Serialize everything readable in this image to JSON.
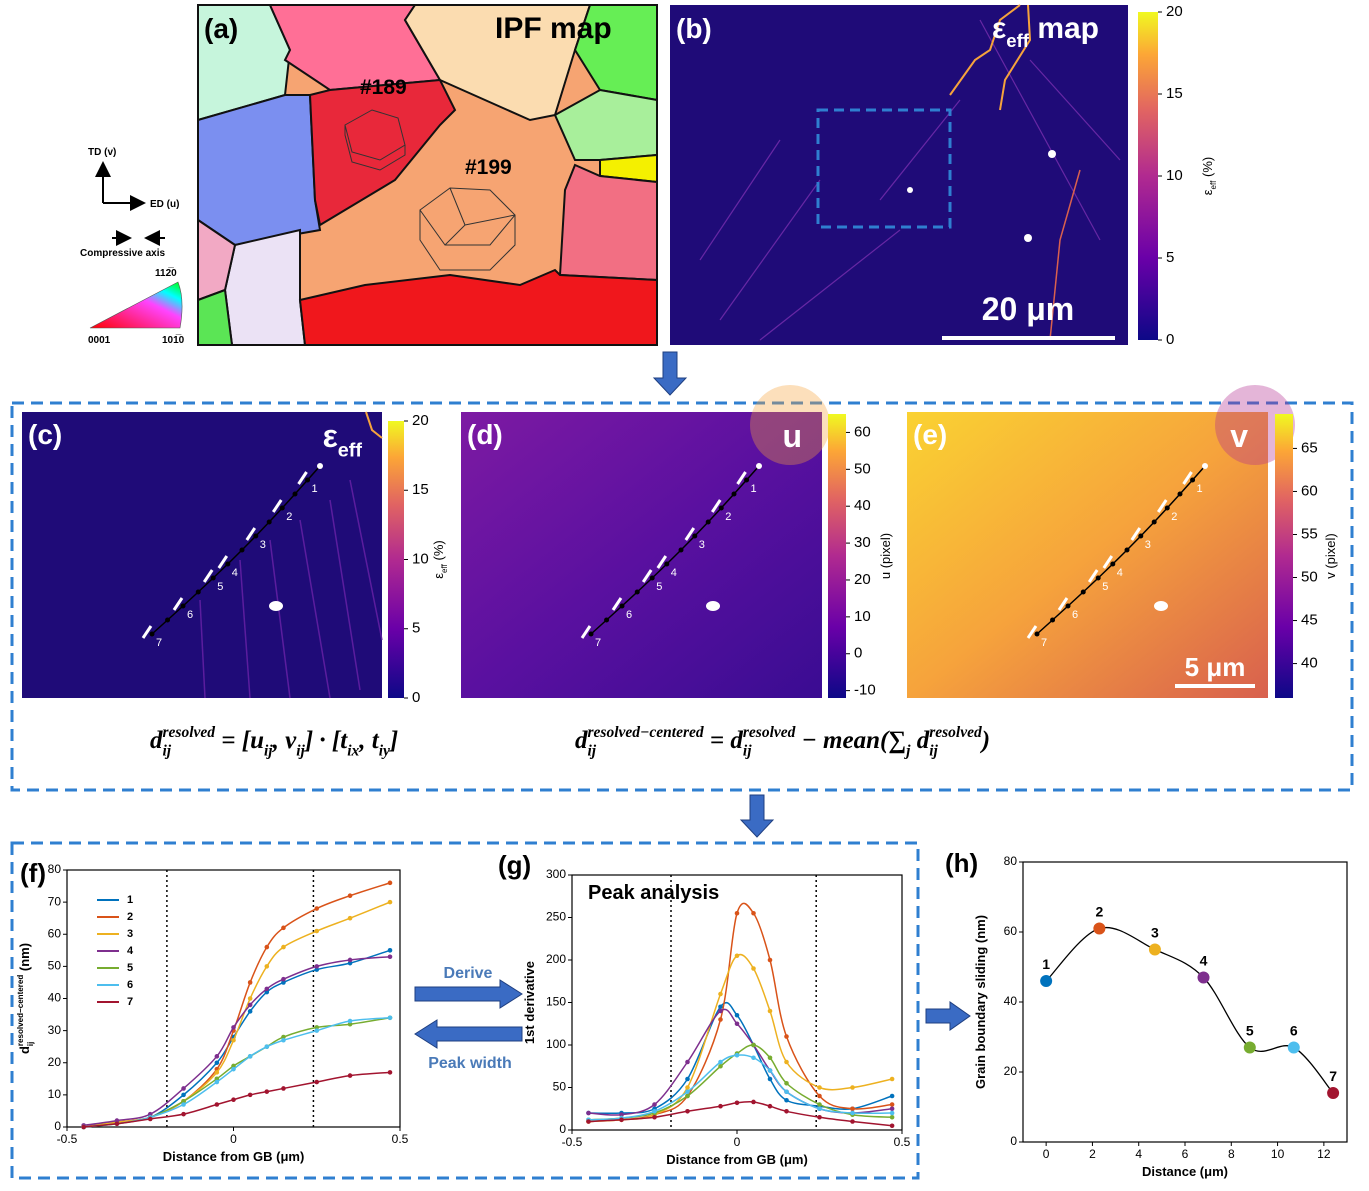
{
  "figure": {
    "panel_a": {
      "label": "(a)",
      "title": "IPF map",
      "grain_labels": [
        "#189",
        "#199"
      ],
      "td_axis": "TD (v)",
      "ed_axis": "ED (u)",
      "compressive_axis": "Compressive axis",
      "ipf_corners": [
        "0001",
        "101̅0",
        "112̅0"
      ]
    },
    "panel_b": {
      "label": "(b)",
      "title": [
        [
          "ε",
          ""
        ],
        [
          "eff",
          "sub"
        ],
        [
          " map",
          ""
        ]
      ],
      "scale_bar": "20 μm",
      "colorbar": {
        "label": [
          [
            "ε",
            ""
          ],
          [
            "eff",
            "sub"
          ],
          [
            " (%)",
            ""
          ]
        ],
        "lim": [
          0,
          20
        ],
        "ticks": [
          0,
          5,
          10,
          15,
          20
        ]
      }
    },
    "panel_c": {
      "label": "(c)",
      "title": [
        [
          "ε",
          ""
        ],
        [
          "eff",
          "sub"
        ]
      ],
      "colorbar": {
        "label": [
          [
            "ε",
            ""
          ],
          [
            "eff",
            "sub"
          ],
          [
            " (%)",
            ""
          ]
        ],
        "lim": [
          0,
          20
        ],
        "ticks": [
          0,
          5,
          10,
          15,
          20
        ]
      }
    },
    "panel_d": {
      "label": "(d)",
      "title": [
        [
          "u",
          ""
        ]
      ],
      "colorbar": {
        "label": [
          [
            "u (pixel)",
            ""
          ]
        ],
        "lim": [
          -12,
          65
        ],
        "ticks": [
          -10,
          0,
          10,
          20,
          30,
          40,
          50,
          60
        ]
      }
    },
    "panel_e": {
      "label": "(e)",
      "title": [
        [
          "v",
          ""
        ]
      ],
      "scale_bar": "5 μm",
      "colorbar": {
        "label": [
          [
            "v (pixel)",
            ""
          ]
        ],
        "lim": [
          36,
          69
        ],
        "ticks": [
          40,
          45,
          50,
          55,
          60,
          65
        ]
      }
    },
    "profile_labels": [
      "1",
      "2",
      "3",
      "4",
      "5",
      "6",
      "7"
    ],
    "equations": [
      [
        [
          "d",
          ""
        ],
        [
          "resolved",
          "sup"
        ],
        [
          "ij",
          "sub"
        ],
        [
          " = [u",
          ""
        ],
        [
          "ij",
          "sub"
        ],
        [
          ", v",
          ""
        ],
        [
          "ij",
          "sub"
        ],
        [
          "] · [t",
          ""
        ],
        [
          "ix",
          "sub"
        ],
        [
          ", t",
          ""
        ],
        [
          "iy",
          "sub"
        ],
        [
          "]",
          ""
        ]
      ],
      [
        [
          "d",
          ""
        ],
        [
          "resolved−centered",
          "sup"
        ],
        [
          "ij",
          "sub"
        ],
        [
          " = d",
          ""
        ],
        [
          "resolved",
          "sup"
        ],
        [
          "ij",
          "sub"
        ],
        [
          " − mean(∑",
          ""
        ],
        [
          "j",
          "sub"
        ],
        [
          " d",
          ""
        ],
        [
          "resolved",
          "sup"
        ],
        [
          "ij",
          "sub"
        ],
        [
          ")",
          ""
        ]
      ]
    ],
    "arrows": {
      "derive": "Derive",
      "peak_width": "Peak width"
    }
  },
  "chart_data": [
    {
      "type": "line",
      "label": "(f)",
      "xlabel": "Distance from GB (μm)",
      "ylabel": [
        [
          "d",
          ""
        ],
        [
          "resolved−centered",
          "sup"
        ],
        [
          "ij",
          "sub"
        ],
        [
          " (nm)",
          ""
        ]
      ],
      "xlim": [
        -0.5,
        0.5
      ],
      "xticks": [
        -0.5,
        0,
        0.5
      ],
      "ylim": [
        0,
        80
      ],
      "yticks": [
        0,
        10,
        20,
        30,
        40,
        50,
        60,
        70,
        80
      ],
      "reference_lines_x": [
        -0.2,
        0.24
      ],
      "legend": "upper left",
      "x": [
        -0.45,
        -0.35,
        -0.25,
        -0.15,
        -0.05,
        0,
        0.05,
        0.1,
        0.15,
        0.25,
        0.35,
        0.47
      ],
      "series": [
        {
          "name": "1",
          "color": "#0072bd",
          "values": [
            0,
            1.5,
            3,
            10,
            20,
            28,
            36,
            42,
            45,
            49,
            51,
            55
          ]
        },
        {
          "name": "2",
          "color": "#d95319",
          "values": [
            0,
            1.5,
            3,
            8,
            18,
            30,
            45,
            56,
            62,
            68,
            72,
            76
          ]
        },
        {
          "name": "3",
          "color": "#edb120",
          "values": [
            0,
            1.5,
            3,
            8,
            17,
            27,
            40,
            50,
            56,
            61,
            65,
            70
          ]
        },
        {
          "name": "4",
          "color": "#7e2f8e",
          "values": [
            0.5,
            2,
            4,
            12,
            22,
            31,
            38,
            43,
            46,
            50,
            52,
            53
          ]
        },
        {
          "name": "5",
          "color": "#77ac30",
          "values": [
            0,
            1,
            3,
            8,
            15,
            19,
            22,
            25,
            28,
            31,
            32,
            34
          ]
        },
        {
          "name": "6",
          "color": "#4dbeee",
          "values": [
            0,
            1,
            3,
            7,
            14,
            18,
            22,
            25,
            27,
            30,
            33,
            34
          ]
        },
        {
          "name": "7",
          "color": "#a2142f",
          "values": [
            0,
            1,
            2.5,
            4,
            7,
            8.5,
            10,
            11,
            12,
            14,
            16,
            17
          ]
        }
      ]
    },
    {
      "type": "line",
      "label": "(g)",
      "title": "Peak analysis",
      "xlabel": "Distance from GB (μm)",
      "ylabel": [
        [
          "1st derivative",
          ""
        ]
      ],
      "xlim": [
        -0.5,
        0.5
      ],
      "xticks": [
        -0.5,
        0,
        0.5
      ],
      "ylim": [
        0,
        300
      ],
      "yticks": [
        0,
        50,
        100,
        150,
        200,
        250,
        300
      ],
      "reference_lines_x": [
        -0.2,
        0.24
      ],
      "x": [
        -0.45,
        -0.35,
        -0.25,
        -0.15,
        -0.05,
        0,
        0.05,
        0.1,
        0.15,
        0.25,
        0.35,
        0.47
      ],
      "series": [
        {
          "name": "1",
          "color": "#0072bd",
          "values": [
            20,
            20,
            25,
            60,
            145,
            135,
            100,
            60,
            35,
            28,
            25,
            40
          ]
        },
        {
          "name": "2",
          "color": "#d95319",
          "values": [
            10,
            12,
            18,
            40,
            130,
            255,
            255,
            200,
            110,
            40,
            25,
            30
          ]
        },
        {
          "name": "3",
          "color": "#edb120",
          "values": [
            10,
            12,
            18,
            50,
            160,
            205,
            190,
            140,
            80,
            50,
            50,
            60
          ]
        },
        {
          "name": "4",
          "color": "#7e2f8e",
          "values": [
            20,
            18,
            30,
            80,
            140,
            125,
            100,
            70,
            45,
            25,
            20,
            25
          ]
        },
        {
          "name": "5",
          "color": "#77ac30",
          "values": [
            12,
            14,
            20,
            40,
            75,
            90,
            100,
            85,
            55,
            30,
            18,
            15
          ]
        },
        {
          "name": "6",
          "color": "#4dbeee",
          "values": [
            12,
            14,
            22,
            45,
            80,
            88,
            85,
            70,
            45,
            25,
            20,
            20
          ]
        },
        {
          "name": "7",
          "color": "#a2142f",
          "values": [
            10,
            12,
            15,
            22,
            28,
            32,
            33,
            28,
            22,
            15,
            10,
            5
          ]
        }
      ]
    },
    {
      "type": "spline",
      "label": "(h)",
      "xlabel": "Distance (μm)",
      "ylabel": [
        [
          "Grain boundary sliding (nm)",
          ""
        ]
      ],
      "xlim": [
        -1,
        13
      ],
      "xticks": [
        0,
        2,
        4,
        6,
        8,
        10,
        12
      ],
      "ylim": [
        0,
        80
      ],
      "yticks": [
        0,
        20,
        40,
        60,
        80
      ],
      "x": [
        0,
        2.3,
        4.7,
        6.8,
        8.8,
        10.7,
        12.4
      ],
      "point_labels": [
        "1",
        "2",
        "3",
        "4",
        "5",
        "6",
        "7"
      ],
      "series": [
        {
          "color": "#000000",
          "values": [
            46,
            61,
            55,
            47,
            27,
            27,
            14
          ],
          "marker_colors": [
            "#0072bd",
            "#d95319",
            "#edb120",
            "#7e2f8e",
            "#77ac30",
            "#4dbeee",
            "#a2142f"
          ]
        }
      ]
    }
  ]
}
